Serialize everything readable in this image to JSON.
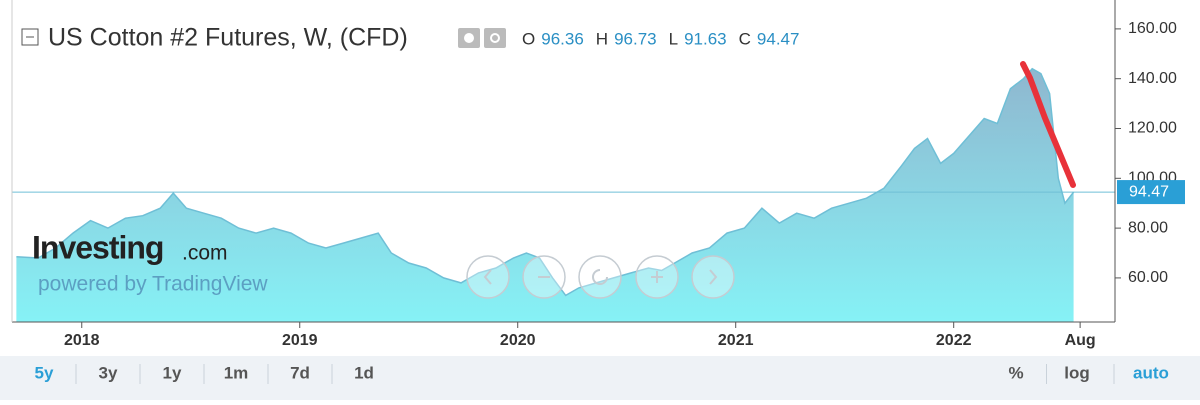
{
  "chart_data": {
    "type": "area",
    "title": "US Cotton #2 Futures, W, (CFD)",
    "ohlc": [
      {
        "label": "O",
        "value": 96.36
      },
      {
        "label": "H",
        "value": 96.73
      },
      {
        "label": "L",
        "value": 91.63
      },
      {
        "label": "C",
        "value": 94.47
      }
    ],
    "watermark": {
      "brand": "Investing",
      "suffix": ".com",
      "powered": "powered by TradingView"
    },
    "ranges": [
      "5y",
      "3y",
      "1y",
      "1m",
      "7d",
      "1d"
    ],
    "scale_options": [
      "%",
      "log",
      "auto"
    ],
    "color": "#6fbfd6",
    "x": [
      2017.7,
      2017.8,
      2017.88,
      2017.96,
      2018.04,
      2018.12,
      2018.2,
      2018.28,
      2018.36,
      2018.42,
      2018.48,
      2018.56,
      2018.64,
      2018.72,
      2018.8,
      2018.88,
      2018.96,
      2019.04,
      2019.12,
      2019.2,
      2019.28,
      2019.36,
      2019.42,
      2019.5,
      2019.58,
      2019.66,
      2019.74,
      2019.82,
      2019.9,
      2019.98,
      2020.04,
      2020.1,
      2020.16,
      2020.22,
      2020.28,
      2020.36,
      2020.44,
      2020.52,
      2020.6,
      2020.66,
      2020.72,
      2020.8,
      2020.88,
      2020.96,
      2021.04,
      2021.12,
      2021.2,
      2021.28,
      2021.36,
      2021.44,
      2021.52,
      2021.6,
      2021.68,
      2021.76,
      2021.82,
      2021.88,
      2021.94,
      2022.0,
      2022.08,
      2022.14,
      2022.2,
      2022.26,
      2022.32,
      2022.36,
      2022.4,
      2022.44,
      2022.48,
      2022.51,
      2022.55
    ],
    "values": [
      68.5,
      68,
      72,
      78,
      83,
      80,
      84,
      85,
      88,
      94,
      88,
      86,
      84,
      80,
      78,
      80,
      78,
      74,
      72,
      74,
      76,
      78,
      70,
      66,
      64,
      60,
      58,
      62,
      64,
      68,
      70,
      68,
      60,
      53,
      56,
      58,
      60,
      62,
      64,
      63,
      66,
      70,
      72,
      78,
      80,
      88,
      82,
      86,
      84,
      88,
      90,
      92,
      96,
      105,
      112,
      116,
      106,
      110,
      118,
      124,
      122,
      136,
      140,
      144,
      142,
      134,
      100,
      90,
      94.47
    ],
    "xlim": [
      2017.68,
      2022.74
    ],
    "xticks": [
      {
        "value": 2018,
        "label": "2018"
      },
      {
        "value": 2019,
        "label": "2019"
      },
      {
        "value": 2020,
        "label": "2020"
      },
      {
        "value": 2021,
        "label": "2021"
      },
      {
        "value": 2022,
        "label": "2022"
      },
      {
        "value": 2022.58,
        "label": "Aug"
      }
    ],
    "ylim": [
      42.3,
      171.6
    ],
    "yticks": [
      {
        "value": 60,
        "label": "60.00"
      },
      {
        "value": 80,
        "label": "80.00"
      },
      {
        "value": 100,
        "label": "100.00"
      },
      {
        "value": 120,
        "label": "120.00"
      },
      {
        "value": 140,
        "label": "140.00"
      },
      {
        "value": 160,
        "label": "160.00"
      }
    ]
  }
}
